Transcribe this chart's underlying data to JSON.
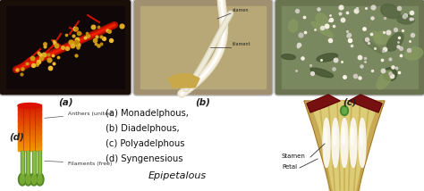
{
  "bg_color": "#ffffff",
  "photo_a_label": "(a)",
  "photo_b_label": "(b)",
  "photo_c_label": "(c)",
  "photo_d_label": "(d)",
  "text_lines": [
    "(a) Monadelphous,",
    "(b) Diadelphous,",
    "(c) Polyadelphous",
    "(d) Syngenesious"
  ],
  "epipetalous_label": "Epipetalous",
  "stamen_label": "Stamen",
  "petal_label": "Petal",
  "anthers_label": "Anthers (united)",
  "filaments_label": "Filaments (free)",
  "photo_a_bg": "#1a0f08",
  "photo_b_bg": "#b8a878",
  "photo_c_bg": "#8a9470",
  "label_color": "#222222"
}
